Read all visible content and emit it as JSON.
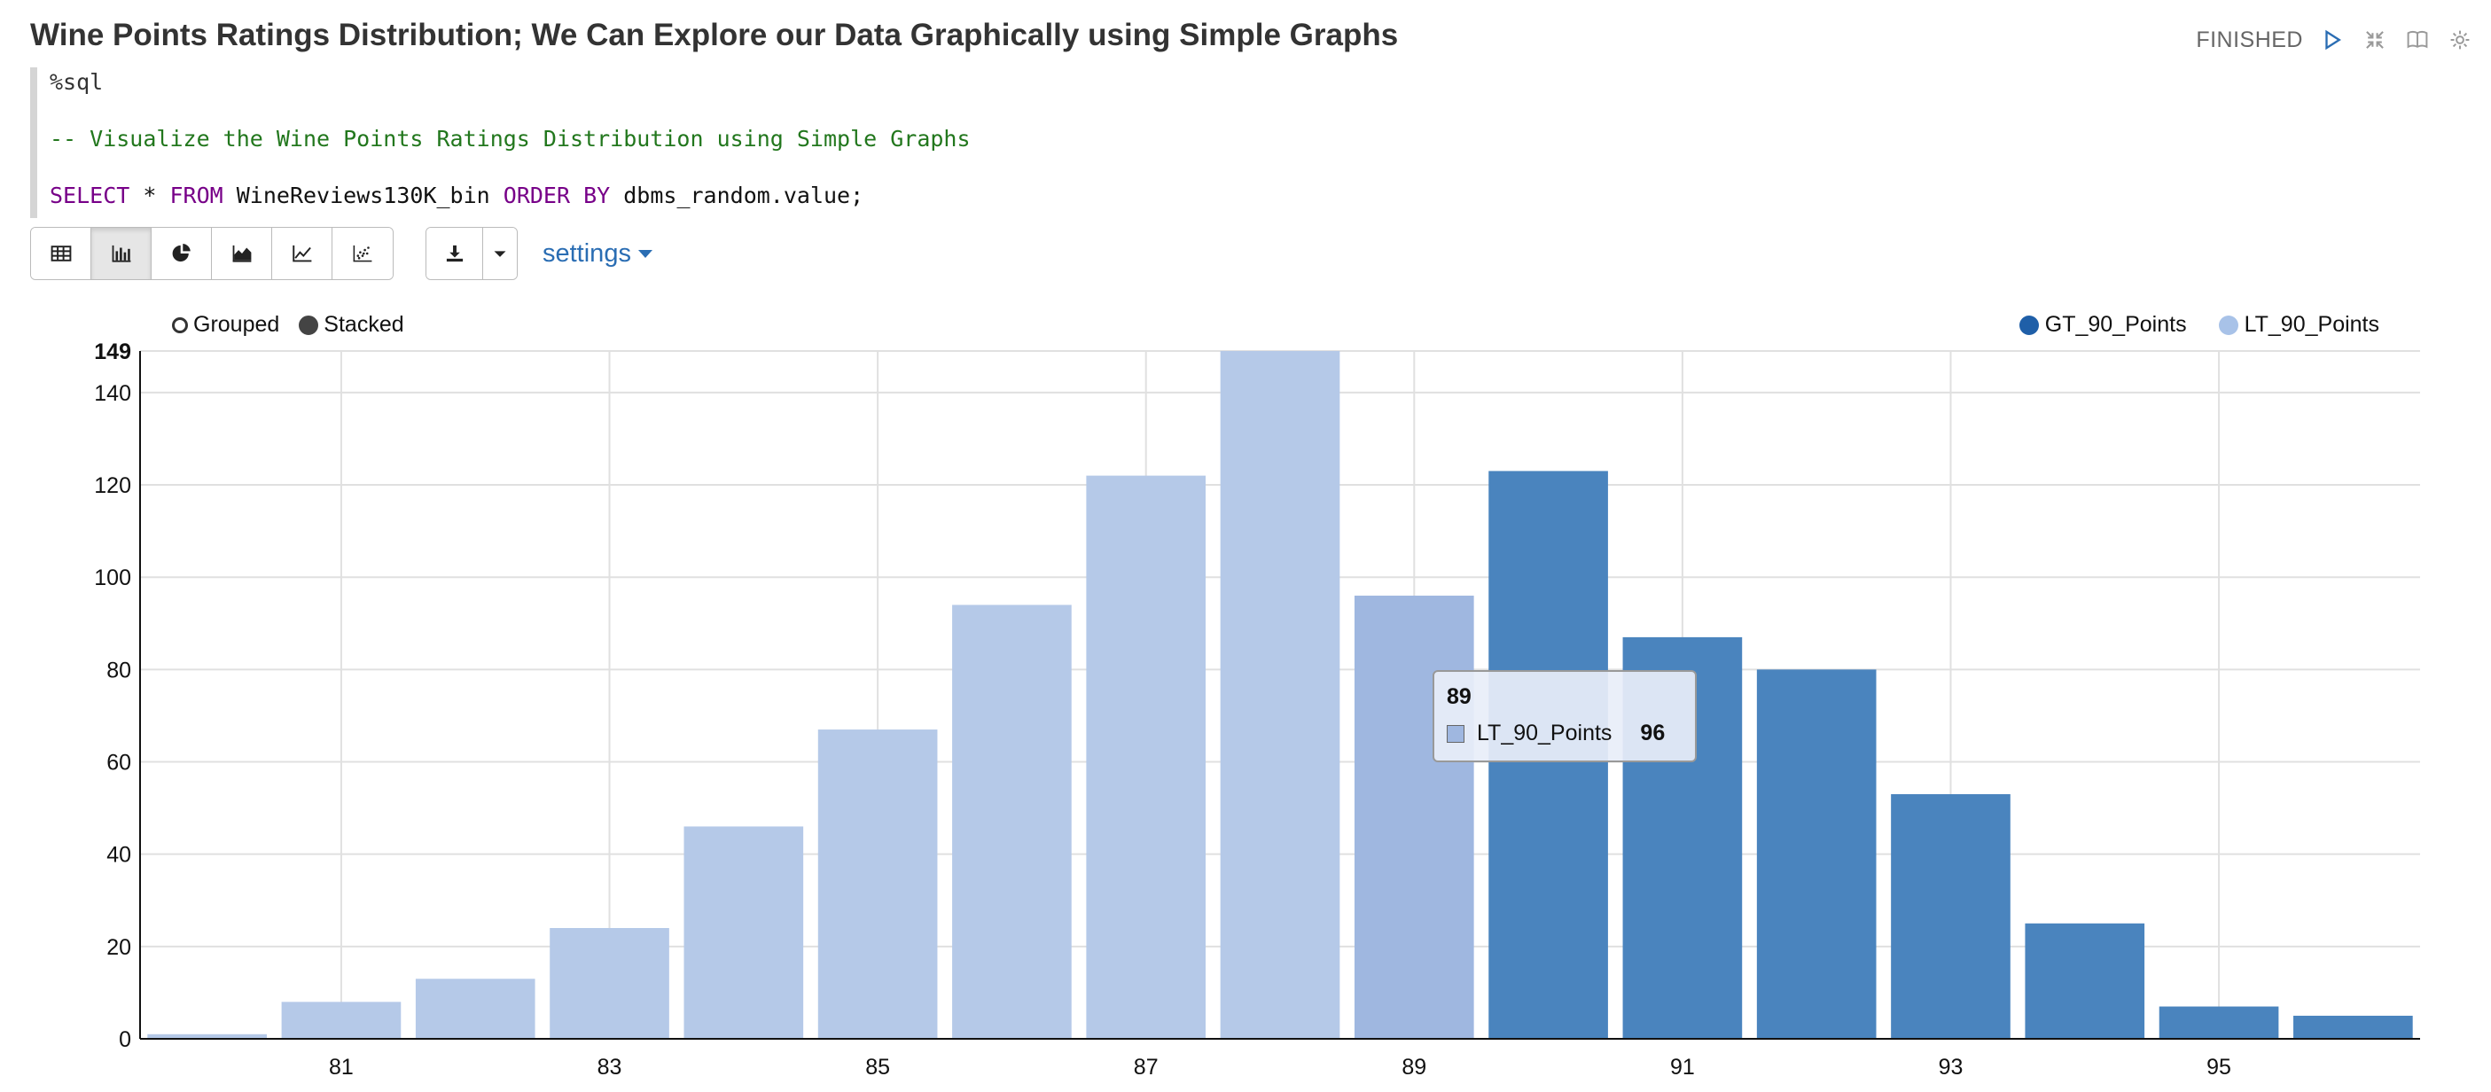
{
  "paragraph": {
    "title": "Wine Points Ratings Distribution; We Can Explore our Data Graphically using Simple Graphs",
    "status": "FINISHED"
  },
  "editor": {
    "line1": "%sql",
    "line2": "-- Visualize the Wine Points Ratings Distribution using Simple Graphs",
    "line3_kw1": "SELECT",
    "line3_a": " * ",
    "line3_kw2": "FROM",
    "line3_b": " WineReviews130K_bin ",
    "line3_kw3": "ORDER BY",
    "line3_c": " dbms_random.value;"
  },
  "toolbar": {
    "settings_label": "settings",
    "icons": [
      "table-icon",
      "bar-chart-icon",
      "pie-chart-icon",
      "area-chart-icon",
      "line-chart-icon",
      "scatter-chart-icon"
    ]
  },
  "mode_switch": {
    "grouped_label": "Grouped",
    "stacked_label": "Stacked",
    "selected": "Stacked"
  },
  "colors": {
    "gt_series": "#4a84be",
    "lt_series": "#b5c9e8",
    "lt_hover": "#9fb7e0",
    "legend_gt": "#1f5fa8",
    "legend_lt": "#a8c2e8"
  },
  "tooltip": {
    "category": "89",
    "series": "LT_90_Points",
    "value": "96"
  },
  "chart_data": {
    "type": "bar",
    "stacked": true,
    "categories": [
      80,
      81,
      82,
      83,
      84,
      85,
      86,
      87,
      88,
      89,
      90,
      91,
      92,
      93,
      94,
      95,
      96
    ],
    "series": [
      {
        "name": "GT_90_Points",
        "values": [
          0,
          0,
          0,
          0,
          0,
          0,
          0,
          0,
          0,
          0,
          123,
          87,
          80,
          53,
          25,
          7,
          5
        ]
      },
      {
        "name": "LT_90_Points",
        "values": [
          1,
          8,
          13,
          24,
          46,
          67,
          94,
          122,
          149,
          96,
          0,
          0,
          0,
          0,
          0,
          0,
          0
        ]
      }
    ],
    "x_tick_labels": [
      "81",
      "83",
      "85",
      "87",
      "89",
      "91",
      "93",
      "95"
    ],
    "y_tick_labels": [
      "0",
      "20",
      "40",
      "60",
      "80",
      "100",
      "120",
      "140",
      "149"
    ],
    "ylim": [
      0,
      149
    ],
    "grid": true,
    "legend_position": "top-right"
  }
}
